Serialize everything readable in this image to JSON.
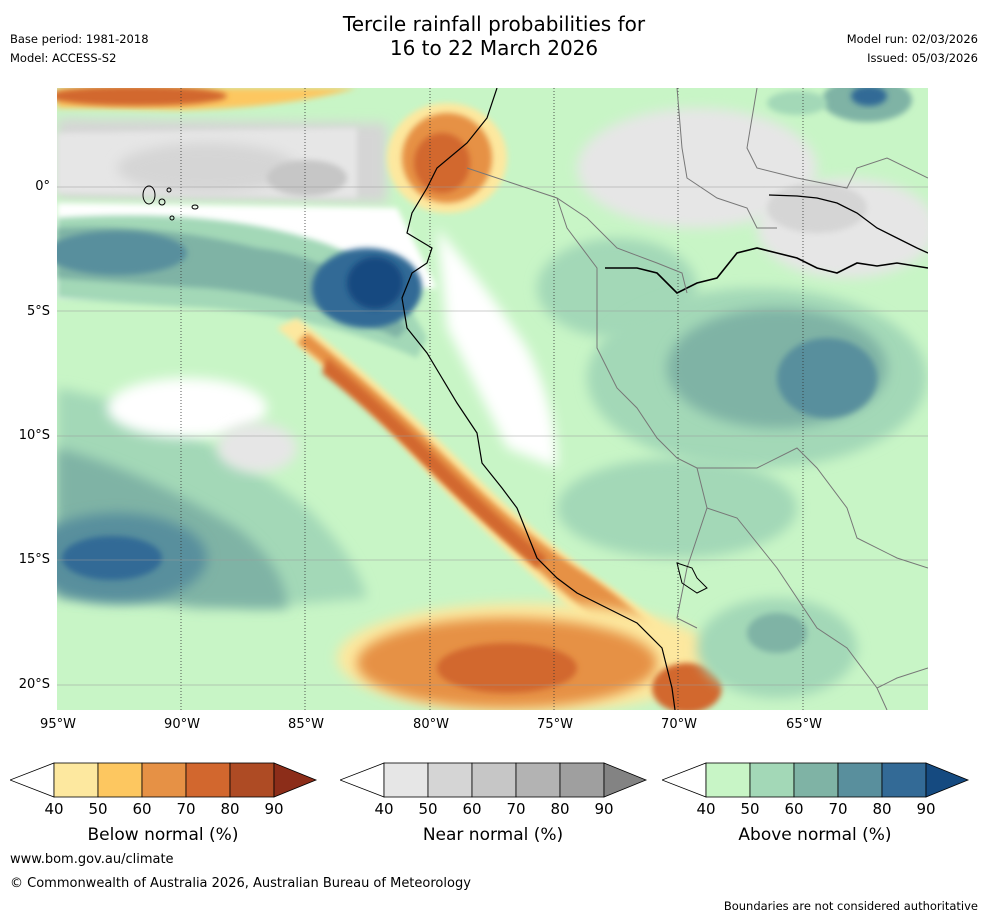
{
  "header": {
    "title_line1": "Tercile rainfall probabilities for",
    "title_line2": "16 to 22 March 2026",
    "base_period": "Base period: 1981-2018",
    "model": "Model: ACCESS-S2",
    "model_run": "Model run: 02/03/2026",
    "issued": "Issued: 05/03/2026"
  },
  "axes": {
    "lat_labels": [
      "0°",
      "5°S",
      "10°S",
      "15°S",
      "20°S"
    ],
    "lon_labels": [
      "95°W",
      "90°W",
      "85°W",
      "80°W",
      "75°W",
      "70°W",
      "65°W"
    ]
  },
  "legend": {
    "below": {
      "label": "Below normal (%)",
      "ticks": [
        "40",
        "50",
        "60",
        "70",
        "80",
        "90"
      ],
      "colors": [
        "#fde89f",
        "#fdc760",
        "#e69145",
        "#d2672e",
        "#ae4b24",
        "#8c2d19"
      ]
    },
    "near": {
      "label": "Near normal (%)",
      "ticks": [
        "40",
        "50",
        "60",
        "70",
        "80",
        "90"
      ],
      "colors": [
        "#e6e6e6",
        "#d5d5d5",
        "#c6c6c6",
        "#b3b3b3",
        "#9f9f9f",
        "#838383"
      ]
    },
    "above": {
      "label": "Above normal (%)",
      "ticks": [
        "40",
        "50",
        "60",
        "70",
        "80",
        "90"
      ],
      "colors": [
        "#c8f5c6",
        "#a3d8b7",
        "#7fb3a5",
        "#598f9d",
        "#336a96",
        "#154a80"
      ]
    }
  },
  "footer": {
    "website": "www.bom.gov.au/climate",
    "copyright": "© Commonwealth of Australia 2026, Australian Bureau of Meteorology",
    "disclaimer": "Boundaries are not considered authoritative"
  }
}
